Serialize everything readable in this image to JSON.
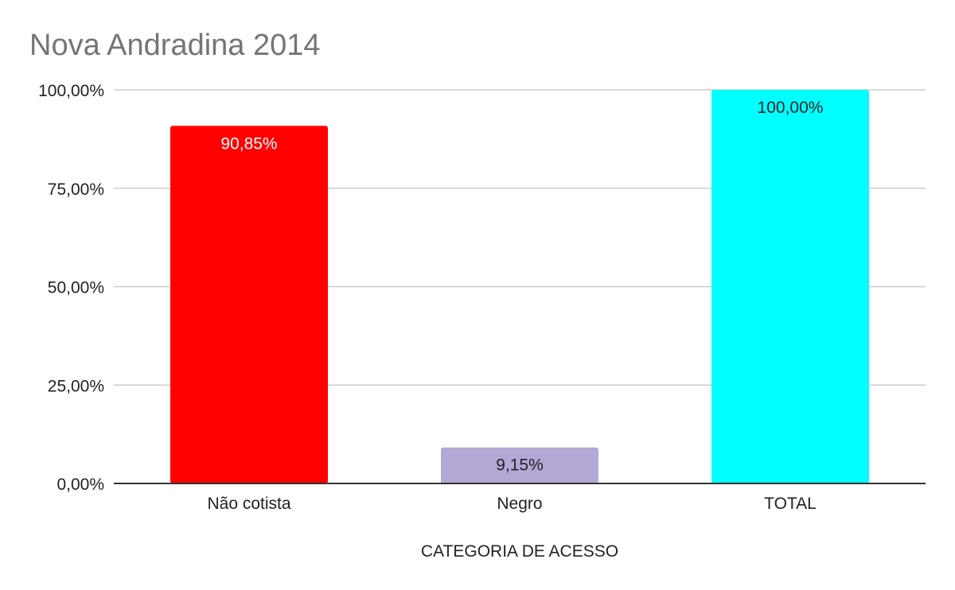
{
  "chart_data": {
    "type": "bar",
    "title": "Nova Andradina 2014",
    "xlabel": "CATEGORIA DE ACESSO",
    "ylabel": "",
    "ylim": [
      0,
      100
    ],
    "yticks": [
      "0,00%",
      "25,00%",
      "50,00%",
      "75,00%",
      "100,00%"
    ],
    "grid": true,
    "categories": [
      "Não cotista",
      "Negro",
      "TOTAL"
    ],
    "values": [
      90.85,
      9.15,
      100.0
    ],
    "data_labels": [
      "90,85%",
      "9,15%",
      "100,00%"
    ],
    "colors": [
      "#ff0000",
      "#b4a7d6",
      "#00ffff"
    ],
    "label_colors": [
      "#ffffff",
      "#222222",
      "#222222"
    ]
  }
}
